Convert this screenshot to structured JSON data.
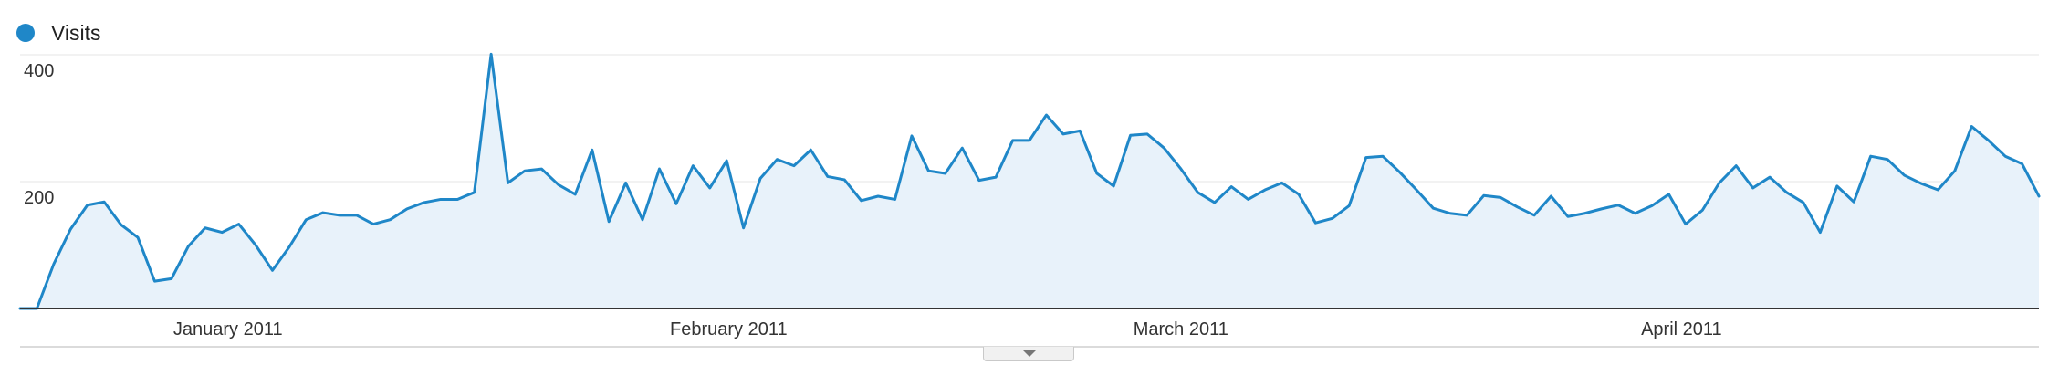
{
  "legend": {
    "label": "Visits",
    "color": "#1f87c8"
  },
  "colors": {
    "line": "#1f87c8",
    "fill": "#e8f2fa",
    "grid": "#e4e4e4",
    "axis": "#333333",
    "text": "#333333"
  },
  "collapse_icon": "chevron-down-icon",
  "chart_data": {
    "type": "area",
    "title": "",
    "xlabel": "",
    "ylabel": "",
    "ylim": [
      0,
      400
    ],
    "yticks": [
      200,
      400
    ],
    "grid": true,
    "legend_position": "top-left",
    "x_start": "2010-12-18",
    "x_end": "2011-04-22",
    "x_tick_labels": [
      {
        "label": "January 2011",
        "date": "2011-01-01"
      },
      {
        "label": "February 2011",
        "date": "2011-02-01"
      },
      {
        "label": "March 2011",
        "date": "2011-03-01"
      },
      {
        "label": "April 2011",
        "date": "2011-04-01"
      }
    ],
    "series": [
      {
        "name": "Visits",
        "values": [
          0,
          0,
          70,
          125,
          163,
          168,
          132,
          112,
          43,
          47,
          98,
          127,
          120,
          133,
          100,
          60,
          97,
          140,
          151,
          147,
          147,
          133,
          140,
          157,
          167,
          172,
          172,
          183,
          401,
          198,
          217,
          220,
          195,
          180,
          250,
          137,
          198,
          140,
          220,
          165,
          225,
          190,
          233,
          127,
          205,
          235,
          225,
          250,
          208,
          203,
          170,
          177,
          172,
          272,
          217,
          213,
          253,
          202,
          207,
          265,
          265,
          305,
          275,
          280,
          213,
          193,
          273,
          275,
          253,
          220,
          183,
          167,
          192,
          172,
          187,
          198,
          180,
          135,
          142,
          162,
          238,
          240,
          215,
          187,
          158,
          150,
          147,
          178,
          175,
          160,
          147,
          177,
          145,
          150,
          157,
          163,
          150,
          162,
          180,
          133,
          155,
          198,
          225,
          190,
          207,
          183,
          167,
          120,
          193,
          168,
          240,
          235,
          210,
          197,
          187,
          217,
          287,
          265,
          240,
          228,
          177
        ]
      }
    ]
  }
}
